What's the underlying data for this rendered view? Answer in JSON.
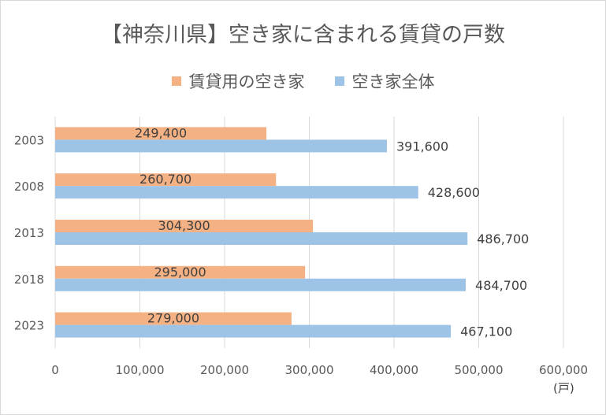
{
  "chart_data": {
    "type": "bar",
    "orientation": "horizontal",
    "title": "【神奈川県】空き家に含まれる賃貸の戸数",
    "categories": [
      "2003",
      "2008",
      "2013",
      "2018",
      "2023"
    ],
    "series": [
      {
        "name": "賃貸用の空き家",
        "color": "#f4b183",
        "values": [
          249400,
          260700,
          304300,
          295000,
          279000
        ],
        "labels": [
          "249,400",
          "260,700",
          "304,300",
          "295,000",
          "279,000"
        ]
      },
      {
        "name": "空き家全体",
        "color": "#9dc3e6",
        "values": [
          391600,
          428600,
          486700,
          484700,
          467100
        ],
        "labels": [
          "391,600",
          "428,600",
          "486,700",
          "484,700",
          "467,100"
        ]
      }
    ],
    "xlim": [
      0,
      600000
    ],
    "x_ticks": [
      0,
      100000,
      200000,
      300000,
      400000,
      500000,
      600000
    ],
    "x_tick_labels": [
      "0",
      "100,000",
      "200,000",
      "300,000",
      "400,000",
      "500,000",
      "600,000"
    ],
    "unit": "(戸)",
    "grid": "vertical",
    "legend_position": "top"
  }
}
